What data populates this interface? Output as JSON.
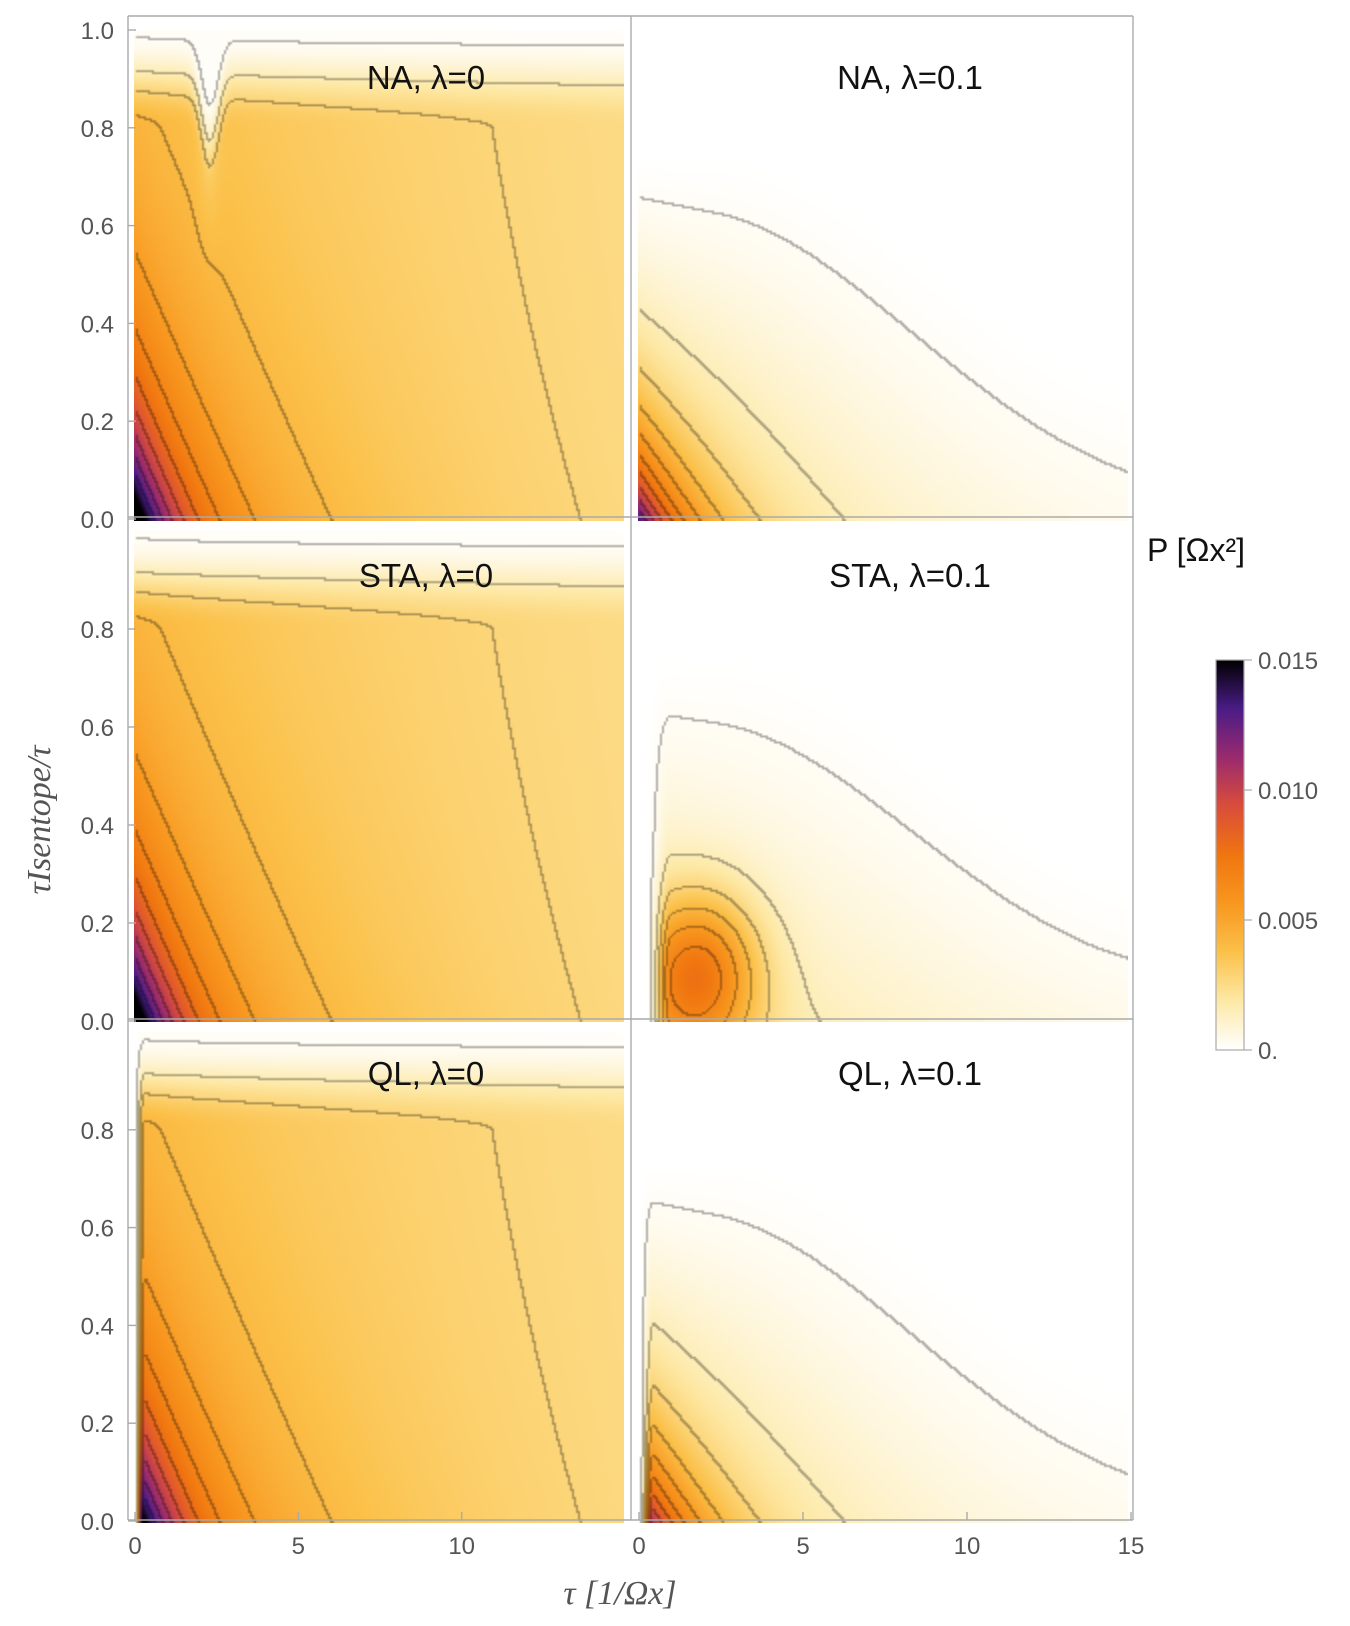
{
  "chart_data": {
    "type": "heatmap",
    "colorbar": {
      "title": "P [Ωx²]",
      "min": 0,
      "max": 0.015,
      "ticks": [
        "0.015",
        "0.010",
        "0.005",
        "0."
      ],
      "tick_values": [
        0.015,
        0.01,
        0.005,
        0
      ],
      "colors": [
        "#ffffff",
        "#fde9a6",
        "#fbc14a",
        "#f8971f",
        "#f07510",
        "#d94d3a",
        "#9a2a6e",
        "#4a1c86",
        "#000000"
      ]
    },
    "xlabel": "τ [1/Ωx]",
    "ylabel": "τIsentope/τ",
    "xlim": [
      0,
      15
    ],
    "ylim": [
      0,
      1
    ],
    "x_ticks_left": [
      "0",
      "5",
      "10"
    ],
    "x_tick_values_left": [
      0,
      5,
      10
    ],
    "x_ticks_right": [
      "0",
      "5",
      "10",
      "15"
    ],
    "x_tick_values_right": [
      0,
      5,
      10,
      15
    ],
    "y_ticks_top": [
      "0.0",
      "0.2",
      "0.4",
      "0.6",
      "0.8",
      "1.0"
    ],
    "y_tick_values_top": [
      0,
      0.2,
      0.4,
      0.6,
      0.8,
      1.0
    ],
    "y_ticks": [
      "0.0",
      "0.2",
      "0.4",
      "0.6",
      "0.8"
    ],
    "y_tick_values": [
      0,
      0.2,
      0.4,
      0.6,
      0.8
    ],
    "panels": [
      {
        "title": "NA, λ=0",
        "method": "NA",
        "lambda": 0,
        "peak": 0.015
      },
      {
        "title": "NA, λ=0.1",
        "method": "NA",
        "lambda": 0.1,
        "peak": 0.014
      },
      {
        "title": "STA, λ=0",
        "method": "STA",
        "lambda": 0,
        "peak": 0.015
      },
      {
        "title": "STA, λ=0.1",
        "method": "STA",
        "lambda": 0.1,
        "peak": 0.008
      },
      {
        "title": "QL, λ=0",
        "method": "QL",
        "lambda": 0,
        "peak": 0.014
      },
      {
        "title": "QL, λ=0.1",
        "method": "QL",
        "lambda": 0.1,
        "peak": 0.013
      }
    ]
  }
}
